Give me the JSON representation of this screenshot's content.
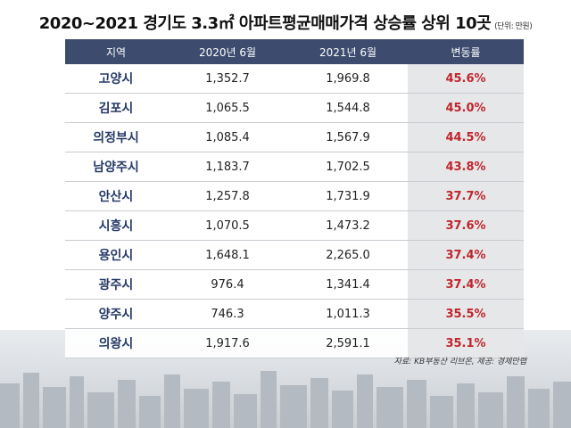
{
  "title": "2020~2021 경기도 3.3㎡ 아파트평균매매가격 상승률 상위 10곳",
  "unit": "(단위: 만원)",
  "source": "자료: KB부동산 리브온, 제공: 경제만랩",
  "colors": {
    "header_bg": "#3c4b6e",
    "region_text": "#263a66",
    "rate_text": "#c0252c",
    "rate_bg": "#e6e7e9"
  },
  "chart_data": {
    "type": "table",
    "title": "2020~2021 경기도 3.3㎡ 아파트평균매매가격 상승률 상위 10곳",
    "columns": [
      "지역",
      "2020년 6월",
      "2021년 6월",
      "변동률"
    ],
    "rows": [
      [
        "고양시",
        "1,352.7",
        "1,969.8",
        "45.6%"
      ],
      [
        "김포시",
        "1,065.5",
        "1,544.8",
        "45.0%"
      ],
      [
        "의정부시",
        "1,085.4",
        "1,567.9",
        "44.5%"
      ],
      [
        "남양주시",
        "1,183.7",
        "1,702.5",
        "43.8%"
      ],
      [
        "안산시",
        "1,257.8",
        "1,731.9",
        "37.7%"
      ],
      [
        "시흥시",
        "1,070.5",
        "1,473.2",
        "37.6%"
      ],
      [
        "용인시",
        "1,648.1",
        "2,265.0",
        "37.4%"
      ],
      [
        "광주시",
        "976.4",
        "1,341.4",
        "37.4%"
      ],
      [
        "양주시",
        "746.3",
        "1,011.3",
        "35.5%"
      ],
      [
        "의왕시",
        "1,917.6",
        "2,591.1",
        "35.1%"
      ]
    ]
  }
}
